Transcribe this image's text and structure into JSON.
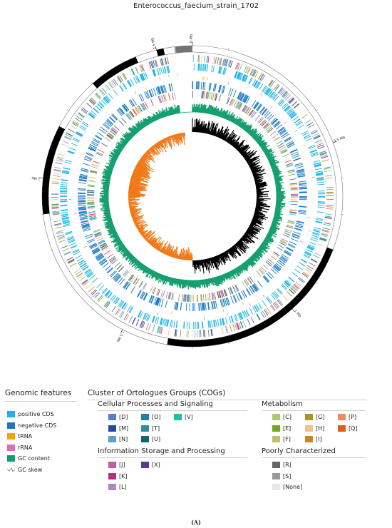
{
  "title": "Enterococcus_faecium_strain_1702",
  "genome": {
    "size_mb": 2.6,
    "tick_labels": [
      "0 Mb",
      "0.5 Mb",
      "1 Mb",
      "1.5 Mb",
      "2 Mb",
      "2.5 Mb"
    ],
    "tick_positions_mb": [
      0,
      0.5,
      1.0,
      1.5,
      2.0,
      2.5
    ],
    "contig_band_mb": [
      [
        0.0,
        0.0
      ],
      [
        0.0,
        0.05
      ],
      [
        2.44,
        2.5
      ],
      [
        2.52,
        2.55
      ],
      [
        2.57,
        2.6
      ]
    ],
    "contig_black_mb": [
      [
        0.0,
        0.0
      ],
      [
        0.8,
        1.37
      ],
      [
        1.9,
        2.15
      ],
      [
        2.3,
        2.44
      ],
      [
        2.5,
        2.52
      ]
    ],
    "contig_gray_mb": [
      [
        2.55,
        2.6
      ]
    ]
  },
  "colors": {
    "positive_cds": "#1ab4e8",
    "negative_cds": "#1a78c2",
    "trna": "#f5a300",
    "rrna": "#e06bb0",
    "gc_content": "#149e6e",
    "gc_skew_pos": "#000000",
    "gc_skew_neg": "#f07a1a"
  },
  "legend": {
    "genomic_features": {
      "heading": "Genomic features",
      "items": [
        {
          "label": "positive CDS",
          "color": "#1ab4e8"
        },
        {
          "label": "negative CDS",
          "color": "#1a78c2"
        },
        {
          "label": "tRNA",
          "color": "#f5a300"
        },
        {
          "label": "rRNA",
          "color": "#e06bb0"
        },
        {
          "label": "GC content",
          "color": "#149e6e"
        },
        {
          "label": "GC skew",
          "icon": "gc-skew-icon"
        }
      ]
    },
    "cog": {
      "heading": "Cluster of Ortologues Groups (COGs)",
      "cellular": {
        "heading": "Cellular Processes and Signaling",
        "items": [
          {
            "label": "[D]",
            "color": "#5b7fc4"
          },
          {
            "label": "[M]",
            "color": "#244aa5"
          },
          {
            "label": "[N]",
            "color": "#5aa0c8"
          },
          {
            "label": "[O]",
            "color": "#1f80b0"
          },
          {
            "label": "[T]",
            "color": "#2e8ea0"
          },
          {
            "label": "[U]",
            "color": "#176470"
          },
          {
            "label": "[V]",
            "color": "#1cc0a8"
          }
        ]
      },
      "information": {
        "heading": "Information Storage and Processing",
        "items": [
          {
            "label": "[J]",
            "color": "#c45aa8"
          },
          {
            "label": "[K]",
            "color": "#b8307a"
          },
          {
            "label": "[L]",
            "color": "#a888cc"
          },
          {
            "label": "[X]",
            "color": "#5a3a90"
          }
        ]
      },
      "metabolism": {
        "heading": "Metabolism",
        "items": [
          {
            "label": "[C]",
            "color": "#a8cc6a"
          },
          {
            "label": "[E]",
            "color": "#6ea820"
          },
          {
            "label": "[F]",
            "color": "#c0c06a"
          },
          {
            "label": "[G]",
            "color": "#a89820"
          },
          {
            "label": "[H]",
            "color": "#f2c088"
          },
          {
            "label": "[I]",
            "color": "#c88a20"
          },
          {
            "label": "[P]",
            "color": "#f08a5a"
          },
          {
            "label": "[Q]",
            "color": "#d86010"
          }
        ]
      },
      "poorly": {
        "heading": "Poorly Characterized",
        "items": [
          {
            "label": "[R]",
            "color": "#666666"
          },
          {
            "label": "[S]",
            "color": "#9a9a9a"
          },
          {
            "label": "[None]",
            "color": "#e8e8e8"
          }
        ]
      }
    }
  },
  "panel_label": "(A)"
}
